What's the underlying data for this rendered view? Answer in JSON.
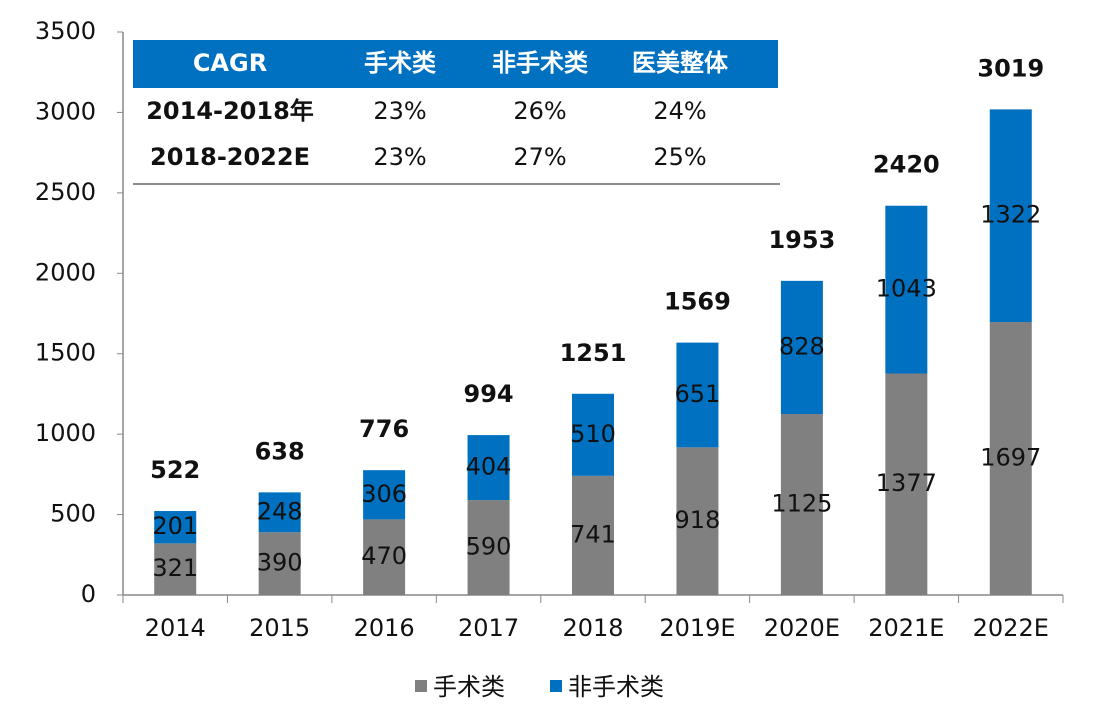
{
  "chart_data": {
    "type": "bar",
    "stacked": true,
    "categories": [
      "2014",
      "2015",
      "2016",
      "2017",
      "2018",
      "2019E",
      "2020E",
      "2021E",
      "2022E"
    ],
    "series": [
      {
        "name": "手术类",
        "color": "#808080",
        "values": [
          321,
          390,
          470,
          590,
          741,
          918,
          1125,
          1377,
          1697
        ]
      },
      {
        "name": "非手术类",
        "color": "#0070c0",
        "values": [
          201,
          248,
          306,
          404,
          510,
          651,
          828,
          1043,
          1322
        ]
      }
    ],
    "totals": [
      522,
      638,
      776,
      994,
      1251,
      1569,
      1953,
      2420,
      3019
    ],
    "ylim": [
      0,
      3500
    ],
    "yticks": [
      0,
      500,
      1000,
      1500,
      2000,
      2500,
      3000,
      3500
    ],
    "grid": false,
    "legend": "bottom"
  },
  "table": {
    "header": [
      "CAGR",
      "手术类",
      "非手术类",
      "医美整体"
    ],
    "rows": [
      [
        "2014-2018年",
        "23%",
        "26%",
        "24%"
      ],
      [
        "2018-2022E",
        "23%",
        "27%",
        "25%"
      ]
    ],
    "header_color": "#0070c0"
  }
}
